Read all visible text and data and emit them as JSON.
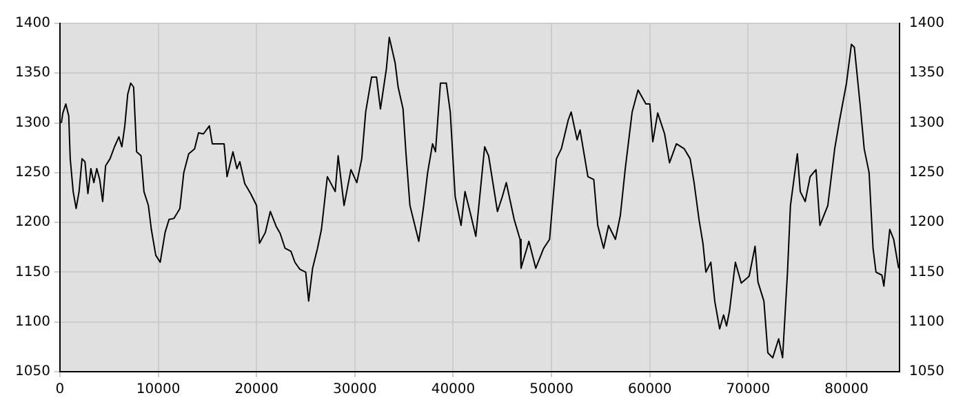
{
  "chart_data": {
    "type": "line",
    "x": [
      150,
      300,
      600,
      900,
      1050,
      1350,
      1650,
      1950,
      2250,
      2550,
      2850,
      3150,
      3450,
      3750,
      4050,
      4350,
      4650,
      5100,
      5550,
      6000,
      6300,
      6600,
      6900,
      7200,
      7500,
      7800,
      8250,
      8550,
      9000,
      9300,
      9750,
      10200,
      10700,
      11100,
      11600,
      12200,
      12600,
      13100,
      13700,
      14100,
      14600,
      15200,
      15500,
      16100,
      16700,
      17000,
      17600,
      18000,
      18300,
      18800,
      19400,
      20000,
      20300,
      20900,
      21400,
      22000,
      22400,
      22900,
      23500,
      23900,
      24400,
      25000,
      25300,
      25700,
      26200,
      26600,
      27200,
      28000,
      28300,
      28900,
      29600,
      30200,
      30700,
      31100,
      31700,
      32200,
      32600,
      33200,
      33500,
      34100,
      34400,
      34900,
      35200,
      35600,
      36200,
      36500,
      37000,
      37400,
      37900,
      38200,
      38700,
      39300,
      39700,
      40200,
      40800,
      41200,
      41800,
      42300,
      42700,
      43200,
      43600,
      44500,
      45000,
      45400,
      46200,
      46800,
      46900,
      47700,
      48400,
      49200,
      49800,
      50500,
      51000,
      51700,
      52000,
      52600,
      52900,
      53700,
      54300,
      54700,
      55300,
      55800,
      56500,
      57000,
      57500,
      58200,
      58800,
      59600,
      60000,
      60300,
      60800,
      61500,
      62000,
      62700,
      63500,
      64100,
      64500,
      65000,
      65400,
      65700,
      66200,
      66600,
      67100,
      67500,
      67800,
      68100,
      68700,
      69300,
      70100,
      70700,
      71000,
      71600,
      72000,
      72500,
      73100,
      73500,
      74000,
      74300,
      75000,
      75300,
      75800,
      76300,
      76900,
      77300,
      78100,
      78800,
      79300,
      80000,
      80500,
      80800,
      81400,
      81800,
      82300,
      82700,
      83000,
      83600,
      83800,
      84400,
      84800,
      85300
    ],
    "values": [
      1300,
      1310,
      1319,
      1307,
      1264,
      1231,
      1214,
      1231,
      1264,
      1261,
      1229,
      1254,
      1240,
      1254,
      1243,
      1221,
      1257,
      1264,
      1276,
      1286,
      1276,
      1297,
      1329,
      1340,
      1336,
      1271,
      1267,
      1231,
      1217,
      1193,
      1167,
      1160,
      1190,
      1203,
      1204,
      1214,
      1250,
      1269,
      1274,
      1290,
      1289,
      1297,
      1279,
      1279,
      1279,
      1246,
      1271,
      1254,
      1261,
      1239,
      1229,
      1217,
      1179,
      1190,
      1211,
      1196,
      1189,
      1174,
      1171,
      1160,
      1153,
      1150,
      1121,
      1154,
      1174,
      1193,
      1246,
      1231,
      1267,
      1217,
      1253,
      1240,
      1264,
      1311,
      1346,
      1346,
      1314,
      1354,
      1386,
      1360,
      1336,
      1314,
      1269,
      1217,
      1193,
      1181,
      1217,
      1250,
      1279,
      1271,
      1340,
      1340,
      1311,
      1226,
      1197,
      1231,
      1207,
      1186,
      1226,
      1276,
      1267,
      1211,
      1226,
      1240,
      1203,
      1183,
      1154,
      1181,
      1154,
      1174,
      1183,
      1264,
      1274,
      1303,
      1311,
      1283,
      1293,
      1246,
      1243,
      1197,
      1174,
      1197,
      1183,
      1207,
      1254,
      1311,
      1333,
      1319,
      1319,
      1281,
      1310,
      1289,
      1260,
      1279,
      1274,
      1264,
      1240,
      1203,
      1179,
      1150,
      1160,
      1121,
      1093,
      1107,
      1096,
      1111,
      1160,
      1139,
      1146,
      1176,
      1140,
      1121,
      1069,
      1064,
      1083,
      1064,
      1150,
      1217,
      1269,
      1231,
      1221,
      1246,
      1253,
      1197,
      1217,
      1274,
      1303,
      1340,
      1379,
      1376,
      1317,
      1274,
      1250,
      1174,
      1150,
      1147,
      1136,
      1193,
      1183,
      1154
    ],
    "color": "#000000",
    "xlim": [
      0,
      85400
    ],
    "xticks": [
      0,
      10000,
      20000,
      30000,
      40000,
      50000,
      60000,
      70000,
      80000
    ],
    "ylim": [
      1050,
      1400
    ],
    "yticks": [
      1050,
      1100,
      1150,
      1200,
      1250,
      1300,
      1350,
      1400
    ],
    "y2lim": [
      1050,
      1400
    ],
    "y2ticks": [
      1050,
      1100,
      1150,
      1200,
      1250,
      1300,
      1350,
      1400
    ],
    "grid": true,
    "legend": false,
    "marker": "none",
    "line_style": "solid"
  }
}
